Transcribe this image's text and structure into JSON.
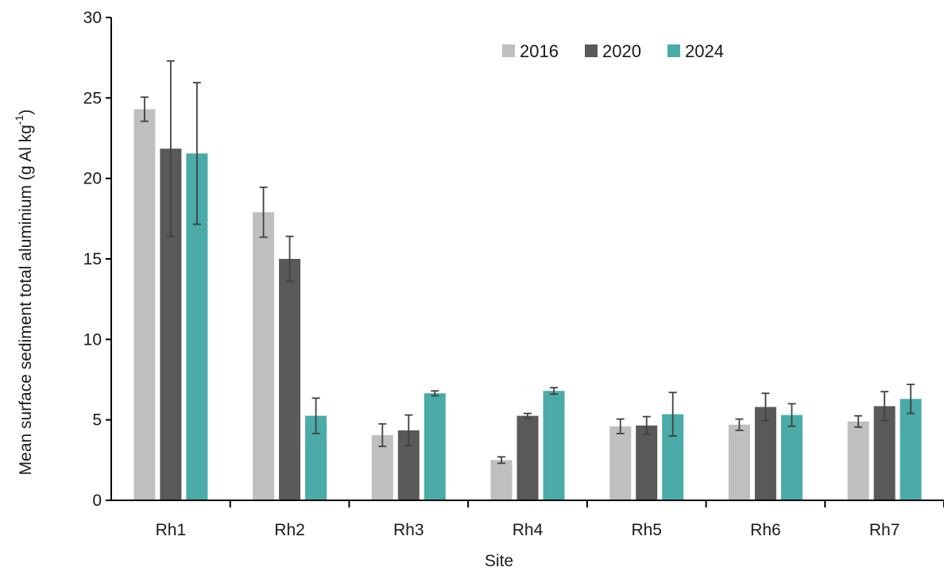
{
  "chart_data": {
    "type": "bar",
    "title": "",
    "xlabel": "Site",
    "ylabel_main": "Mean surface sediment total aluminium (g Al kg",
    "ylabel_sup": "-1",
    "ylabel_tail": ")",
    "ylim": [
      0,
      30
    ],
    "yticks": [
      0,
      5,
      10,
      15,
      20,
      25,
      30
    ],
    "yticks_labels": [
      "0",
      "5",
      "10",
      "15",
      "20",
      "25",
      "30"
    ],
    "grid": false,
    "legend_position": "top-center",
    "categories": [
      "Rh1",
      "Rh2",
      "Rh3",
      "Rh4",
      "Rh5",
      "Rh6",
      "Rh7"
    ],
    "series": [
      {
        "name": "2016",
        "color": "#bfbfbf",
        "values": [
          24.3,
          17.9,
          4.05,
          2.5,
          4.6,
          4.7,
          4.9
        ],
        "errors": [
          0.75,
          1.55,
          0.7,
          0.2,
          0.45,
          0.35,
          0.35
        ]
      },
      {
        "name": "2020",
        "color": "#595959",
        "values": [
          21.85,
          15.0,
          4.35,
          5.25,
          4.65,
          5.8,
          5.85
        ],
        "errors": [
          5.45,
          1.4,
          0.95,
          0.15,
          0.55,
          0.85,
          0.9
        ]
      },
      {
        "name": "2024",
        "color": "#4aaba8",
        "values": [
          21.55,
          5.25,
          6.65,
          6.8,
          5.35,
          5.3,
          6.3
        ],
        "errors": [
          4.4,
          1.1,
          0.15,
          0.2,
          1.35,
          0.7,
          0.9
        ]
      }
    ]
  }
}
